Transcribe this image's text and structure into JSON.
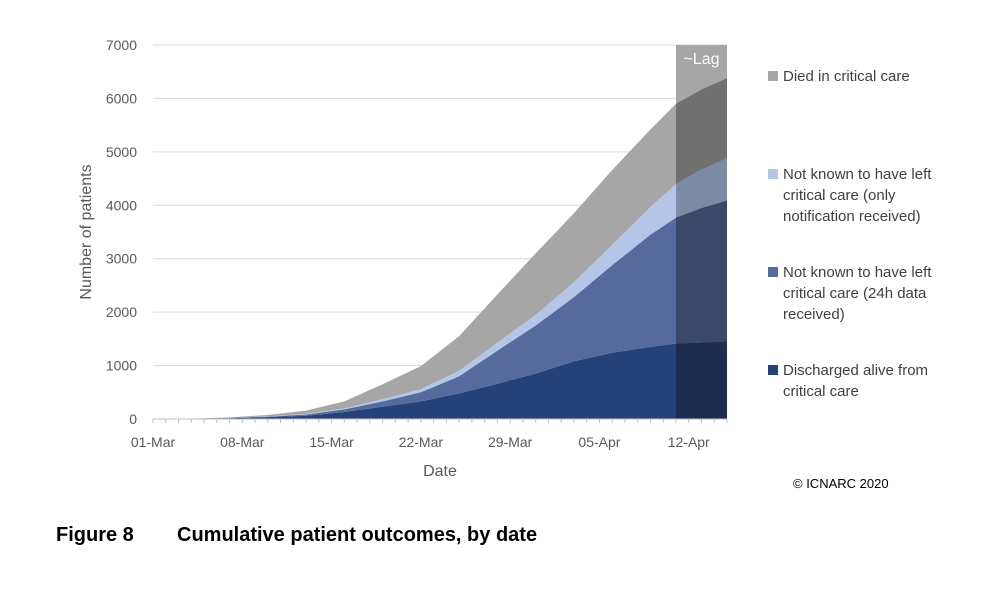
{
  "figure": {
    "number": "Figure 8",
    "title": "Cumulative patient outcomes, by date"
  },
  "copyright": "© ICNARC 2020",
  "chart_data": {
    "type": "area",
    "stacked": true,
    "xlabel": "Date",
    "ylabel": "Number of patients",
    "ylim": [
      0,
      7000
    ],
    "yticks": [
      0,
      1000,
      2000,
      3000,
      4000,
      5000,
      6000,
      7000
    ],
    "xlim": [
      "01-Mar",
      "15-Apr"
    ],
    "xtick_labels": [
      "01-Mar",
      "08-Mar",
      "15-Mar",
      "22-Mar",
      "29-Mar",
      "05-Apr",
      "12-Apr"
    ],
    "grid": "horizontal",
    "legend_position": "right",
    "lag": {
      "label": "~Lag",
      "start": "11-Apr",
      "end": "15-Apr"
    },
    "x": [
      "01-Mar",
      "04-Mar",
      "07-Mar",
      "10-Mar",
      "13-Mar",
      "16-Mar",
      "19-Mar",
      "22-Mar",
      "25-Mar",
      "28-Mar",
      "31-Mar",
      "03-Apr",
      "06-Apr",
      "09-Apr",
      "11-Apr",
      "13-Apr",
      "15-Apr"
    ],
    "series": [
      {
        "name": "Discharged alive from critical care",
        "color": "#254179",
        "lag_color": "#1b2c4f",
        "values": [
          0,
          3,
          15,
          35,
          60,
          130,
          230,
          330,
          480,
          660,
          850,
          1080,
          1240,
          1350,
          1410,
          1430,
          1450
        ]
      },
      {
        "name": "Not known to have left critical care (24h data received)",
        "color": "#556b9d",
        "lag_color": "#3a4869",
        "values": [
          0,
          2,
          5,
          10,
          25,
          50,
          100,
          170,
          320,
          620,
          900,
          1200,
          1640,
          2100,
          2360,
          2520,
          2640
        ]
      },
      {
        "name": "Not known to have left critical care (only notification received)",
        "color": "#b4c6e7",
        "lag_color": "#7c8ba5",
        "values": [
          0,
          0,
          2,
          5,
          12,
          20,
          40,
          60,
          100,
          150,
          200,
          280,
          380,
          520,
          630,
          720,
          790
        ]
      },
      {
        "name": "Died in critical care",
        "color": "#a6a6a6",
        "lag_color": "#707070",
        "values": [
          0,
          2,
          8,
          25,
          60,
          130,
          280,
          430,
          650,
          900,
          1150,
          1290,
          1400,
          1450,
          1500,
          1500,
          1500
        ]
      }
    ]
  }
}
